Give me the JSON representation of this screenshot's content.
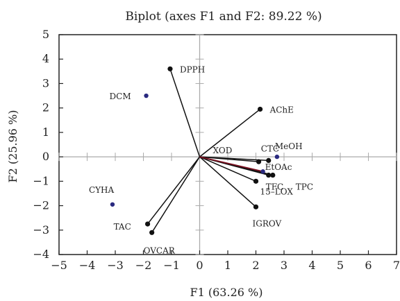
{
  "chart_data": {
    "type": "scatter",
    "title": "Biplot (axes F1 and F2: 89.22 %)",
    "xlabel": "F1 (63.26 %)",
    "ylabel": "F2 (25.96 %)",
    "xlim": [
      -5,
      7
    ],
    "ylim": [
      -4,
      5
    ],
    "xticks": [
      "−5",
      "−4",
      "−3",
      "−2",
      "−1",
      "0",
      "1",
      "2",
      "3",
      "4",
      "5",
      "6",
      "7"
    ],
    "yticks": [
      "5",
      "4",
      "3",
      "2",
      "1",
      "0",
      "−1",
      "−2",
      "−3",
      "−4"
    ],
    "grid": false,
    "variables": [
      {
        "label": "DPPH",
        "x": -1.05,
        "y": 3.6,
        "label_dx": 14,
        "label_dy": 5
      },
      {
        "label": "AChE",
        "x": 2.15,
        "y": 1.95,
        "label_dx": 14,
        "label_dy": 5
      },
      {
        "label": "XOD",
        "x": 2.1,
        "y": -0.2,
        "label_dx": -66,
        "label_dy": -12
      },
      {
        "label": "CTC",
        "x": 2.45,
        "y": -0.15,
        "label_dx": -11,
        "label_dy": -13
      },
      {
        "label": "TFC",
        "x": 2.45,
        "y": -0.75,
        "label_dx": -4,
        "label_dy": 21
      },
      {
        "label": "TPC",
        "x": 2.6,
        "y": -0.75,
        "label_dx": 33,
        "label_dy": 21
      },
      {
        "label": "15–LOX",
        "x": 2.0,
        "y": -1.0,
        "label_dx": 6,
        "label_dy": 19
      },
      {
        "label": "IGROV",
        "x": 2.0,
        "y": -2.05,
        "label_dx": -5,
        "label_dy": 28
      },
      {
        "label": "TAC",
        "x": -1.85,
        "y": -2.75,
        "label_dx": -49,
        "label_dy": 8
      },
      {
        "label": "OVCAR",
        "x": -1.7,
        "y": -3.1,
        "label_dx": -12,
        "label_dy": 30
      }
    ],
    "observations": [
      {
        "label": "DCM",
        "x": -1.9,
        "y": 2.5,
        "label_dx": -53,
        "label_dy": 5
      },
      {
        "label": "MeOH",
        "x": 2.75,
        "y": 0.0,
        "label_dx": -3,
        "label_dy": -11
      },
      {
        "label": "EtOAc",
        "x": 2.25,
        "y": -0.6,
        "label_dx": 3,
        "label_dy": -2
      },
      {
        "label": "CYHA",
        "x": -3.1,
        "y": -1.95,
        "label_dx": -34,
        "label_dy": -17
      }
    ],
    "highlight_line": {
      "x": 2.25,
      "y": -0.6
    },
    "colors": {
      "vector": "#111111",
      "observation": "#2a2a80",
      "highlight": "#7a1020",
      "axis": "#222222",
      "zero_axes": "#aaaaaa"
    }
  }
}
